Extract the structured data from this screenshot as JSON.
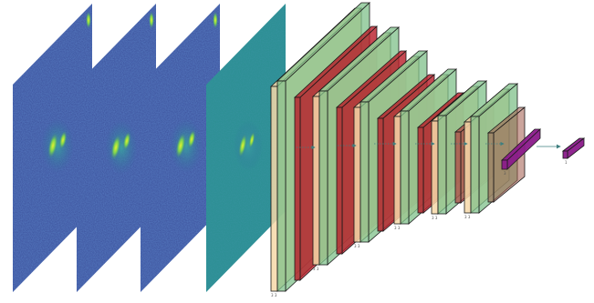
{
  "colors": {
    "background": "#ffffff",
    "map_deep": "#3b4f9a",
    "map_mid": "#2f6f9c",
    "map_teal": "#2a8f90",
    "blob_green": "#79d152",
    "blob_yellow": "#e6f230",
    "conv_face": "#f6d8a8",
    "relu_face": "#7fc08a",
    "pool_face": "#b81c28",
    "fc_face": "#8a1a8a",
    "edge": "#1a1a1a",
    "arrow": "#3f7f7f"
  },
  "diagram": {
    "input_maps": [
      {
        "name": "input-map-1"
      },
      {
        "name": "input-map-2"
      },
      {
        "name": "input-map-3"
      },
      {
        "name": "input-map-4"
      }
    ],
    "stages": [
      {
        "name": "block-1",
        "label": "3 3"
      },
      {
        "name": "block-2",
        "label": "3 3"
      },
      {
        "name": "block-3",
        "label": "3 3"
      },
      {
        "name": "block-4",
        "label": "3 3"
      },
      {
        "name": "block-5",
        "label": "3 3"
      },
      {
        "name": "block-6",
        "label": "3 3"
      }
    ],
    "dense": [
      {
        "name": "dense-1",
        "label": "3"
      },
      {
        "name": "dense-2",
        "label": "1"
      }
    ]
  }
}
